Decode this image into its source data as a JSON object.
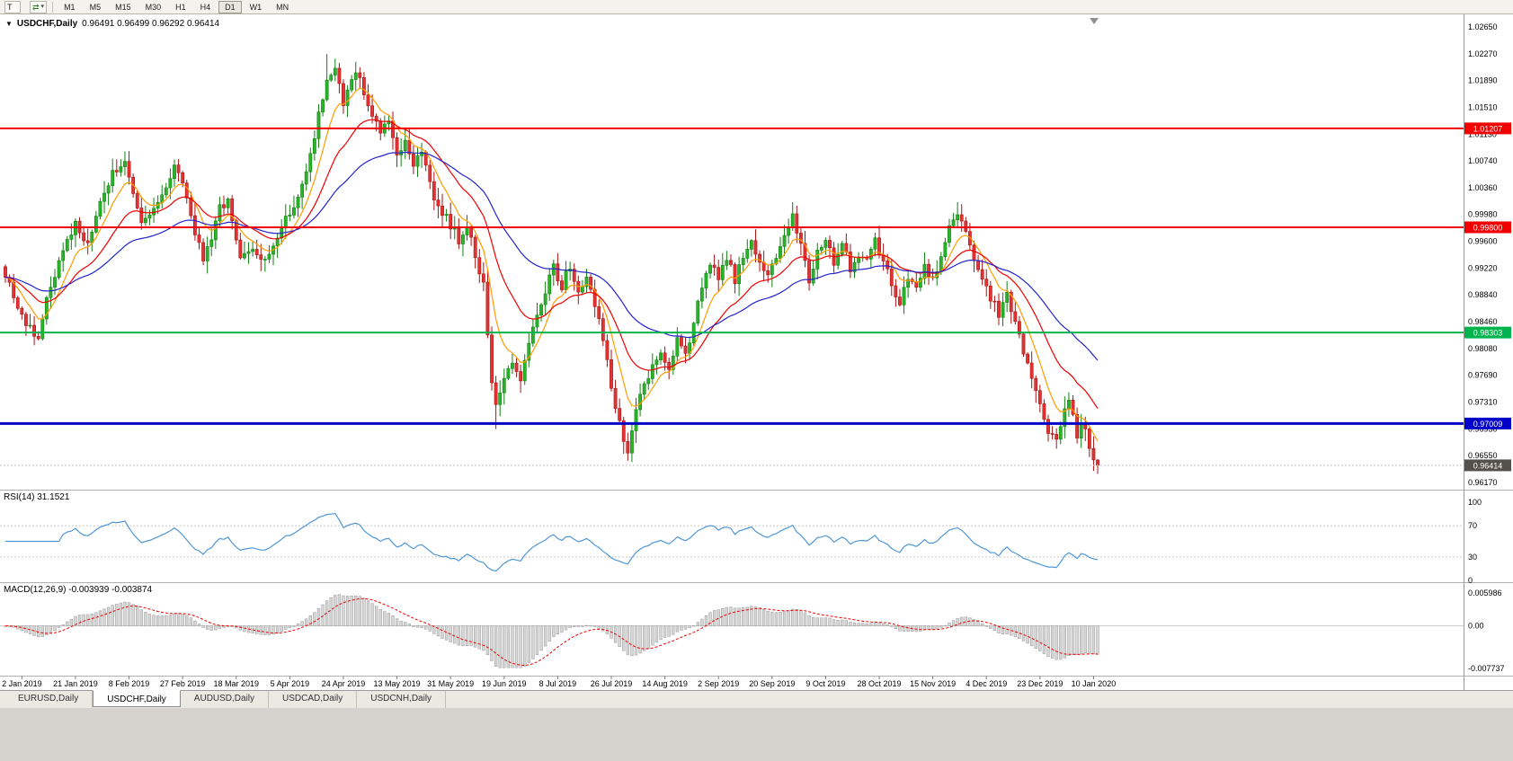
{
  "toolbar": {
    "t_label": "T",
    "timeframes": [
      "M1",
      "M5",
      "M15",
      "M30",
      "H1",
      "H4",
      "D1",
      "W1",
      "MN"
    ],
    "active_timeframe": "D1"
  },
  "chart": {
    "collapse_arrow": "▼",
    "symbol_label": "USDCHF,Daily",
    "ohlc_text": "0.96491 0.96499 0.96292 0.96414",
    "price_axis_labels": [
      "1.02650",
      "1.02270",
      "1.01890",
      "1.01510",
      "1.01130",
      "1.00740",
      "1.00360",
      "0.99980",
      "0.99600",
      "0.99220",
      "0.98840",
      "0.98460",
      "0.98080",
      "0.97690",
      "0.97310",
      "0.96930",
      "0.96550",
      "0.96170"
    ],
    "date_labels": [
      "2 Jan 2019",
      "21 Jan 2019",
      "8 Feb 2019",
      "27 Feb 2019",
      "18 Mar 2019",
      "5 Apr 2019",
      "24 Apr 2019",
      "13 May 2019",
      "31 May 2019",
      "19 Jun 2019",
      "8 Jul 2019",
      "26 Jul 2019",
      "14 Aug 2019",
      "2 Sep 2019",
      "20 Sep 2019",
      "9 Oct 2019",
      "28 Oct 2019",
      "15 Nov 2019",
      "4 Dec 2019",
      "23 Dec 2019",
      "10 Jan 2020"
    ]
  },
  "chart_data": {
    "type": "candlestick",
    "symbol": "USDCHF",
    "timeframe": "Daily",
    "candles": 266,
    "price_range": {
      "top": 1.0265,
      "bottom": 0.9617
    },
    "last_candle": {
      "open": 0.96491,
      "high": 0.96499,
      "low": 0.96292,
      "close": 0.96414
    },
    "close_waypoints": [
      [
        0,
        0.9915
      ],
      [
        2,
        0.9878
      ],
      [
        5,
        0.9842
      ],
      [
        8,
        0.9826
      ],
      [
        11,
        0.9898
      ],
      [
        14,
        0.9946
      ],
      [
        17,
        0.9986
      ],
      [
        20,
        0.9952
      ],
      [
        23,
        1.0012
      ],
      [
        26,
        1.0058
      ],
      [
        29,
        1.0072
      ],
      [
        31,
        1.0022
      ],
      [
        33,
        0.9986
      ],
      [
        36,
        1.0002
      ],
      [
        39,
        1.0042
      ],
      [
        41,
        1.0066
      ],
      [
        43,
        1.0038
      ],
      [
        45,
        0.9992
      ],
      [
        48,
        0.9936
      ],
      [
        50,
        0.9962
      ],
      [
        52,
        1.0006
      ],
      [
        54,
        1.0022
      ],
      [
        57,
        0.9932
      ],
      [
        60,
        0.9948
      ],
      [
        63,
        0.9928
      ],
      [
        65,
        0.9956
      ],
      [
        68,
        0.9992
      ],
      [
        71,
        1.0022
      ],
      [
        74,
        1.0082
      ],
      [
        76,
        1.0142
      ],
      [
        78,
        1.0188
      ],
      [
        80,
        1.0202
      ],
      [
        82,
        1.0158
      ],
      [
        84,
        1.0192
      ],
      [
        86,
        1.0198
      ],
      [
        88,
        1.0152
      ],
      [
        91,
        1.0112
      ],
      [
        93,
        1.0132
      ],
      [
        95,
        1.0082
      ],
      [
        97,
        1.0102
      ],
      [
        99,
        1.0072
      ],
      [
        101,
        1.0092
      ],
      [
        104,
        1.0022
      ],
      [
        107,
        0.9992
      ],
      [
        110,
        0.9962
      ],
      [
        112,
        0.9986
      ],
      [
        114,
        0.9936
      ],
      [
        116,
        0.9896
      ],
      [
        118,
        0.9762
      ],
      [
        119,
        0.9722
      ],
      [
        121,
        0.9772
      ],
      [
        123,
        0.9792
      ],
      [
        125,
        0.9762
      ],
      [
        127,
        0.9812
      ],
      [
        129,
        0.9856
      ],
      [
        131,
        0.9892
      ],
      [
        133,
        0.9922
      ],
      [
        135,
        0.9896
      ],
      [
        137,
        0.9926
      ],
      [
        139,
        0.9892
      ],
      [
        141,
        0.9912
      ],
      [
        143,
        0.9872
      ],
      [
        145,
        0.9822
      ],
      [
        147,
        0.9752
      ],
      [
        149,
        0.9702
      ],
      [
        151,
        0.9662
      ],
      [
        153,
        0.9722
      ],
      [
        155,
        0.9752
      ],
      [
        157,
        0.9782
      ],
      [
        159,
        0.9802
      ],
      [
        161,
        0.9782
      ],
      [
        163,
        0.9822
      ],
      [
        165,
        0.9796
      ],
      [
        167,
        0.9846
      ],
      [
        169,
        0.9892
      ],
      [
        171,
        0.9932
      ],
      [
        173,
        0.9902
      ],
      [
        175,
        0.9936
      ],
      [
        177,
        0.9906
      ],
      [
        179,
        0.9942
      ],
      [
        181,
        0.9956
      ],
      [
        183,
        0.9926
      ],
      [
        185,
        0.9912
      ],
      [
        187,
        0.9938
      ],
      [
        189,
        0.9968
      ],
      [
        191,
        0.9998
      ],
      [
        193,
        0.9952
      ],
      [
        195,
        0.9902
      ],
      [
        197,
        0.9942
      ],
      [
        199,
        0.9966
      ],
      [
        201,
        0.9932
      ],
      [
        203,
        0.9956
      ],
      [
        205,
        0.9922
      ],
      [
        207,
        0.9942
      ],
      [
        209,
        0.9932
      ],
      [
        211,
        0.9962
      ],
      [
        213,
        0.9932
      ],
      [
        215,
        0.9896
      ],
      [
        217,
        0.9872
      ],
      [
        219,
        0.9906
      ],
      [
        221,
        0.9892
      ],
      [
        223,
        0.9922
      ],
      [
        225,
        0.9902
      ],
      [
        227,
        0.9942
      ],
      [
        229,
        0.9976
      ],
      [
        231,
        1.0002
      ],
      [
        233,
        0.9972
      ],
      [
        235,
        0.9936
      ],
      [
        237,
        0.9906
      ],
      [
        239,
        0.9882
      ],
      [
        241,
        0.9856
      ],
      [
        243,
        0.9882
      ],
      [
        245,
        0.9852
      ],
      [
        247,
        0.9806
      ],
      [
        249,
        0.9762
      ],
      [
        251,
        0.9722
      ],
      [
        253,
        0.9692
      ],
      [
        255,
        0.9672
      ],
      [
        257,
        0.9722
      ],
      [
        258,
        0.9736
      ],
      [
        259,
        0.9712
      ],
      [
        260,
        0.9682
      ],
      [
        261,
        0.9702
      ],
      [
        262,
        0.9692
      ],
      [
        263,
        0.9666
      ],
      [
        264,
        0.96491
      ],
      [
        265,
        0.96414
      ]
    ],
    "extreme_overrides": [
      {
        "index": 8,
        "low": 0.9819
      },
      {
        "index": 78,
        "high": 1.02264
      },
      {
        "index": 80,
        "high": 1.022
      },
      {
        "index": 119,
        "low": 0.9693
      },
      {
        "index": 151,
        "low": 0.9648
      },
      {
        "index": 255,
        "low": 0.9665
      }
    ],
    "moving_averages": [
      {
        "period": 8,
        "type": "ema",
        "color": "#ff9c00"
      },
      {
        "period": 20,
        "type": "ema",
        "color": "#f00000"
      },
      {
        "period": 45,
        "type": "ema",
        "color": "#2323cc"
      }
    ],
    "horizontal_levels": [
      {
        "price": 1.01207,
        "label": "1.01207",
        "color": "#f20000",
        "width": 2
      },
      {
        "price": 0.998,
        "label": "0.99800",
        "color": "#f20000",
        "width": 2
      },
      {
        "price": 0.98303,
        "label": "0.98303",
        "color": "#00b34d",
        "width": 2
      },
      {
        "price": 0.97009,
        "label": "0.97009",
        "color": "#0000c8",
        "width": 3
      }
    ],
    "current_price": {
      "price": 0.96414,
      "label": "0.96414",
      "badge_color": "#54504b",
      "line_color": "#c0c0c0"
    },
    "up_color": "#2ab42a",
    "up_border": "#118011",
    "down_color": "#e23434",
    "down_border": "#aa1111"
  },
  "rsi": {
    "label": "RSI(14) 31.1521",
    "period": 14,
    "current": 31.1521,
    "levels": [
      70,
      30
    ],
    "axis_labels": [
      "100",
      "70",
      "30",
      "0"
    ],
    "axis_values": [
      100,
      70,
      30,
      0
    ],
    "color": "#4f97d7"
  },
  "macd": {
    "label": "MACD(12,26,9) -0.003939 -0.003874",
    "fast": 12,
    "slow": 26,
    "signal": 9,
    "macd_current": -0.003939,
    "signal_current": -0.003874,
    "axis_labels": [
      "0.005986",
      "0.00",
      "-0.007737"
    ],
    "axis_values": [
      0.005986,
      0,
      -0.007737
    ],
    "histogram_color": "#d6d6d6",
    "histogram_border": "#9a9a9a",
    "signal_color": "#f00000"
  },
  "tabs": [
    "EURUSD,Daily",
    "USDCHF,Daily",
    "AUDUSD,Daily",
    "USDCAD,Daily",
    "USDCNH,Daily"
  ],
  "active_tab": "USDCHF,Daily"
}
